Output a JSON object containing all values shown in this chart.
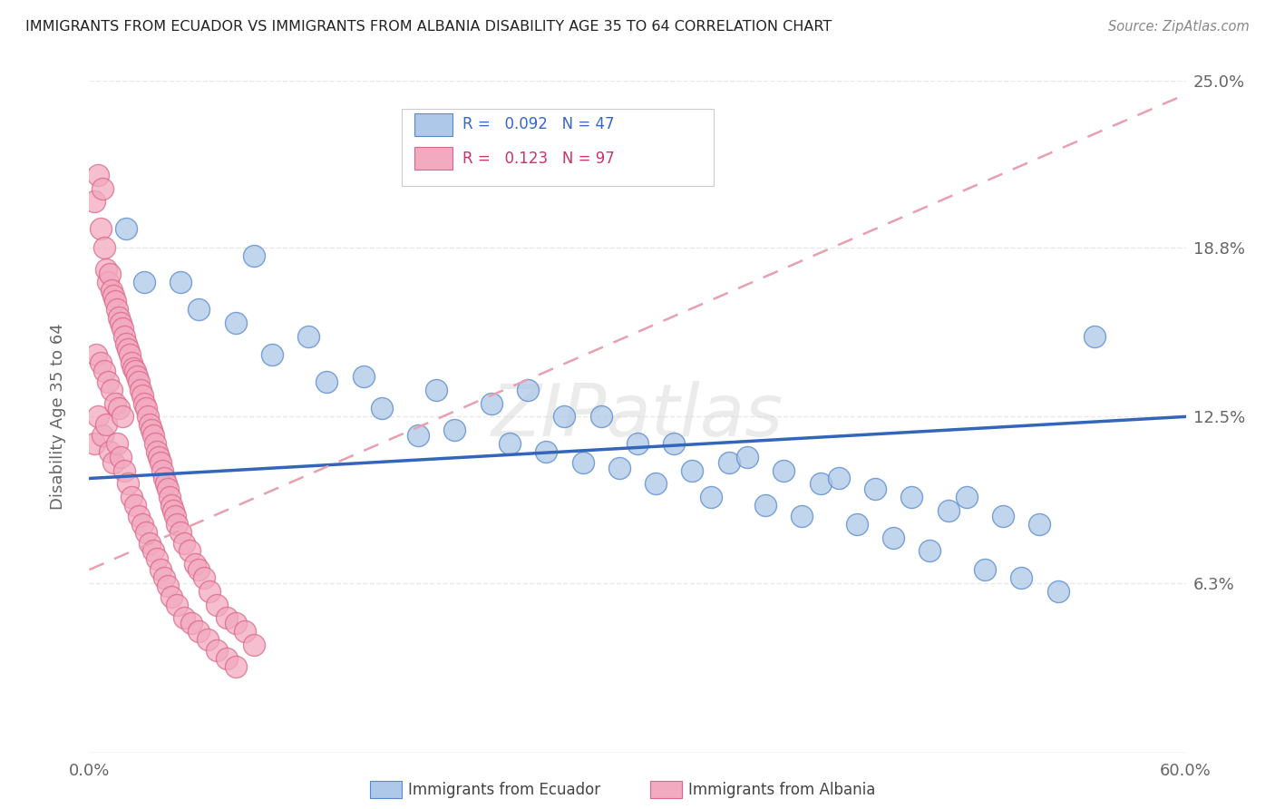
{
  "title": "IMMIGRANTS FROM ECUADOR VS IMMIGRANTS FROM ALBANIA DISABILITY AGE 35 TO 64 CORRELATION CHART",
  "source": "Source: ZipAtlas.com",
  "ylabel": "Disability Age 35 to 64",
  "xlim": [
    0.0,
    0.6
  ],
  "ylim": [
    0.0,
    0.25
  ],
  "ytick_labels_right": [
    "25.0%",
    "18.8%",
    "12.5%",
    "6.3%"
  ],
  "ytick_values_right": [
    0.25,
    0.188,
    0.125,
    0.063
  ],
  "ecuador_R": 0.092,
  "ecuador_N": 47,
  "albania_R": 0.123,
  "albania_N": 97,
  "ecuador_color": "#adc8e8",
  "albania_color": "#f2aac0",
  "ecuador_edge": "#5588cc",
  "albania_edge": "#dd6688",
  "ecuador_line_color": "#3366bb",
  "albania_line_color": "#cc3355",
  "albania_dash_color": "#e8a0b0",
  "watermark_color": "#d8d8d8",
  "background_color": "#ffffff",
  "grid_color": "#e8e8e8",
  "ecuador_x": [
    0.02,
    0.05,
    0.09,
    0.12,
    0.15,
    0.19,
    0.22,
    0.24,
    0.26,
    0.28,
    0.3,
    0.32,
    0.33,
    0.35,
    0.36,
    0.38,
    0.4,
    0.41,
    0.43,
    0.45,
    0.47,
    0.48,
    0.5,
    0.52,
    0.55,
    0.03,
    0.06,
    0.08,
    0.1,
    0.13,
    0.16,
    0.18,
    0.2,
    0.23,
    0.25,
    0.27,
    0.29,
    0.31,
    0.34,
    0.37,
    0.39,
    0.42,
    0.44,
    0.46,
    0.49,
    0.51,
    0.53
  ],
  "ecuador_y": [
    0.195,
    0.175,
    0.185,
    0.155,
    0.14,
    0.135,
    0.13,
    0.135,
    0.125,
    0.125,
    0.115,
    0.115,
    0.105,
    0.108,
    0.11,
    0.105,
    0.1,
    0.102,
    0.098,
    0.095,
    0.09,
    0.095,
    0.088,
    0.085,
    0.155,
    0.175,
    0.165,
    0.16,
    0.148,
    0.138,
    0.128,
    0.118,
    0.12,
    0.115,
    0.112,
    0.108,
    0.106,
    0.1,
    0.095,
    0.092,
    0.088,
    0.085,
    0.08,
    0.075,
    0.068,
    0.065,
    0.06
  ],
  "albania_x": [
    0.003,
    0.005,
    0.006,
    0.007,
    0.008,
    0.009,
    0.01,
    0.011,
    0.012,
    0.013,
    0.014,
    0.015,
    0.016,
    0.017,
    0.018,
    0.019,
    0.02,
    0.021,
    0.022,
    0.023,
    0.024,
    0.025,
    0.026,
    0.027,
    0.028,
    0.029,
    0.03,
    0.031,
    0.032,
    0.033,
    0.034,
    0.035,
    0.036,
    0.037,
    0.038,
    0.039,
    0.04,
    0.041,
    0.042,
    0.043,
    0.044,
    0.045,
    0.046,
    0.047,
    0.048,
    0.05,
    0.052,
    0.055,
    0.058,
    0.06,
    0.063,
    0.066,
    0.07,
    0.075,
    0.08,
    0.085,
    0.09,
    0.003,
    0.005,
    0.007,
    0.009,
    0.011,
    0.013,
    0.015,
    0.017,
    0.019,
    0.021,
    0.023,
    0.025,
    0.027,
    0.029,
    0.031,
    0.033,
    0.035,
    0.037,
    0.039,
    0.041,
    0.043,
    0.045,
    0.048,
    0.052,
    0.056,
    0.06,
    0.065,
    0.07,
    0.075,
    0.08,
    0.004,
    0.006,
    0.008,
    0.01,
    0.012,
    0.014,
    0.016,
    0.018
  ],
  "albania_y": [
    0.205,
    0.215,
    0.195,
    0.21,
    0.188,
    0.18,
    0.175,
    0.178,
    0.172,
    0.17,
    0.168,
    0.165,
    0.162,
    0.16,
    0.158,
    0.155,
    0.152,
    0.15,
    0.148,
    0.145,
    0.143,
    0.142,
    0.14,
    0.138,
    0.135,
    0.133,
    0.13,
    0.128,
    0.125,
    0.122,
    0.12,
    0.118,
    0.115,
    0.112,
    0.11,
    0.108,
    0.105,
    0.102,
    0.1,
    0.098,
    0.095,
    0.092,
    0.09,
    0.088,
    0.085,
    0.082,
    0.078,
    0.075,
    0.07,
    0.068,
    0.065,
    0.06,
    0.055,
    0.05,
    0.048,
    0.045,
    0.04,
    0.115,
    0.125,
    0.118,
    0.122,
    0.112,
    0.108,
    0.115,
    0.11,
    0.105,
    0.1,
    0.095,
    0.092,
    0.088,
    0.085,
    0.082,
    0.078,
    0.075,
    0.072,
    0.068,
    0.065,
    0.062,
    0.058,
    0.055,
    0.05,
    0.048,
    0.045,
    0.042,
    0.038,
    0.035,
    0.032,
    0.148,
    0.145,
    0.142,
    0.138,
    0.135,
    0.13,
    0.128,
    0.125
  ],
  "ecu_line_x0": 0.0,
  "ecu_line_x1": 0.6,
  "ecu_line_y0": 0.102,
  "ecu_line_y1": 0.125,
  "alb_line_x0": 0.0,
  "alb_line_x1": 0.6,
  "alb_line_y0": 0.068,
  "alb_line_y1": 0.245
}
